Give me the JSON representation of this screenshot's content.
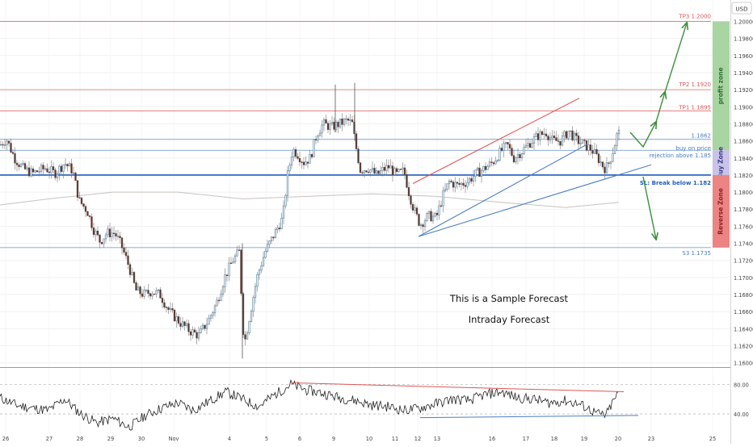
{
  "chart_data": {
    "type": "candlestick",
    "currency": "USD",
    "x_dates": [
      "26",
      "27",
      "28",
      "29",
      "30",
      "Nov",
      "4",
      "5",
      "6",
      "9",
      "10",
      "11",
      "12",
      "13",
      "16",
      "17",
      "18",
      "19",
      "20",
      "23",
      "25"
    ],
    "price_ticks": [
      "1.20000",
      "1.19800",
      "1.19600",
      "1.19400",
      "1.19200",
      "1.19000",
      "1.18800",
      "1.18600",
      "1.18400",
      "1.18200",
      "1.18000",
      "1.17800",
      "1.17600",
      "1.17400",
      "1.17200",
      "1.17000",
      "1.16800",
      "1.16600",
      "1.16400",
      "1.16200",
      "1.16000"
    ],
    "ylim": [
      1.1595,
      1.2025
    ],
    "levels": [
      {
        "label": "TP3 1.2000",
        "price": 1.2,
        "color": "#e05555"
      },
      {
        "label": "TP2 1.1920",
        "price": 1.192,
        "color": "#e05555"
      },
      {
        "label": "TP1 1.1895",
        "price": 1.1895,
        "color": "#e05555"
      },
      {
        "label": "1.1862",
        "price": 1.1862,
        "color": "#4a7fc1"
      },
      {
        "label": "buy on price",
        "price": 1.1849,
        "color": "#4a7fc1"
      },
      {
        "label": "rejection above 1.185",
        "price": 1.1849,
        "color": "#4a7fc1"
      },
      {
        "label": "SL: Break below 1.182",
        "price": 1.182,
        "color": "#1f5fbf"
      },
      {
        "label": "S3 1.1735",
        "price": 1.1735,
        "color": "#4a7fc1"
      }
    ],
    "zones": [
      {
        "label": "profit zone",
        "from": 1.1849,
        "to": 1.2,
        "color": "#a8d5a2"
      },
      {
        "label": "Buy Zone",
        "from": 1.182,
        "to": 1.1849,
        "color": "#c9c3e8"
      },
      {
        "label": "Reverse Zone",
        "from": 1.1735,
        "to": 1.182,
        "color": "#ec8484"
      }
    ],
    "close_anchors": [
      [
        0,
        1.1855
      ],
      [
        8,
        1.1862
      ],
      [
        18,
        1.184
      ],
      [
        28,
        1.1828
      ],
      [
        40,
        1.1822
      ],
      [
        56,
        1.1828
      ],
      [
        68,
        1.1822
      ],
      [
        80,
        1.1834
      ],
      [
        90,
        1.1825
      ],
      [
        98,
        1.179
      ],
      [
        108,
        1.1778
      ],
      [
        116,
        1.1756
      ],
      [
        124,
        1.1742
      ],
      [
        132,
        1.1752
      ],
      [
        142,
        1.1752
      ],
      [
        150,
        1.1738
      ],
      [
        160,
        1.1712
      ],
      [
        168,
        1.1685
      ],
      [
        178,
        1.168
      ],
      [
        188,
        1.1684
      ],
      [
        198,
        1.168
      ],
      [
        210,
        1.166
      ],
      [
        222,
        1.1648
      ],
      [
        234,
        1.1638
      ],
      [
        246,
        1.1632
      ],
      [
        258,
        1.165
      ],
      [
        268,
        1.167
      ],
      [
        278,
        1.17
      ],
      [
        288,
        1.172
      ],
      [
        296,
        1.173
      ],
      [
        302,
        1.162
      ],
      [
        310,
        1.166
      ],
      [
        318,
        1.17
      ],
      [
        328,
        1.173
      ],
      [
        338,
        1.1748
      ],
      [
        350,
        1.177
      ],
      [
        356,
        1.182
      ],
      [
        362,
        1.185
      ],
      [
        368,
        1.1845
      ],
      [
        376,
        1.1835
      ],
      [
        384,
        1.184
      ],
      [
        392,
        1.1868
      ],
      [
        400,
        1.188
      ],
      [
        410,
        1.1876
      ],
      [
        420,
        1.188
      ],
      [
        430,
        1.1884
      ],
      [
        436,
        1.188
      ],
      [
        440,
        1.1856
      ],
      [
        446,
        1.1826
      ],
      [
        456,
        1.1828
      ],
      [
        466,
        1.182
      ],
      [
        474,
        1.1826
      ],
      [
        482,
        1.183
      ],
      [
        490,
        1.182
      ],
      [
        500,
        1.1825
      ],
      [
        506,
        1.18
      ],
      [
        512,
        1.178
      ],
      [
        520,
        1.1762
      ],
      [
        530,
        1.1772
      ],
      [
        540,
        1.177
      ],
      [
        548,
        1.1795
      ],
      [
        556,
        1.1812
      ],
      [
        566,
        1.1808
      ],
      [
        578,
        1.1812
      ],
      [
        590,
        1.1822
      ],
      [
        600,
        1.1828
      ],
      [
        610,
        1.1835
      ],
      [
        620,
        1.1848
      ],
      [
        628,
        1.1855
      ],
      [
        636,
        1.184
      ],
      [
        646,
        1.1848
      ],
      [
        656,
        1.1858
      ],
      [
        666,
        1.1866
      ],
      [
        676,
        1.187
      ],
      [
        684,
        1.186
      ],
      [
        694,
        1.186
      ],
      [
        704,
        1.1872
      ],
      [
        712,
        1.1862
      ],
      [
        722,
        1.1856
      ],
      [
        732,
        1.185
      ],
      [
        740,
        1.184
      ],
      [
        748,
        1.1828
      ],
      [
        752,
        1.183
      ],
      [
        758,
        1.1846
      ],
      [
        764,
        1.1868
      ],
      [
        768,
        1.187
      ]
    ],
    "ma_line": [
      [
        0,
        1.1785
      ],
      [
        60,
        1.1792
      ],
      [
        140,
        1.18
      ],
      [
        220,
        1.18
      ],
      [
        300,
        1.1792
      ],
      [
        380,
        1.1795
      ],
      [
        460,
        1.1798
      ],
      [
        540,
        1.1795
      ],
      [
        620,
        1.1788
      ],
      [
        700,
        1.1782
      ],
      [
        766,
        1.1788
      ]
    ],
    "trendlines": [
      {
        "points": [
          [
            511,
            1.181
          ],
          [
            717,
            1.191
          ]
        ],
        "color": "#e05555"
      },
      {
        "points": [
          [
            518,
            1.1748
          ],
          [
            727,
            1.1856
          ]
        ],
        "color": "#4a7fc1"
      },
      {
        "points": [
          [
            518,
            1.1748
          ],
          [
            806,
            1.1832
          ]
        ],
        "color": "#4a7fc1"
      }
    ],
    "forecast_arrows": [
      {
        "points": [
          [
            780,
            1.187
          ],
          [
            796,
            1.1853
          ],
          [
            812,
            1.1882
          ]
        ],
        "color": "#3a8f3a"
      },
      {
        "points": [
          [
            812,
            1.1882
          ],
          [
            823,
            1.1917
          ]
        ],
        "color": "#3a8f3a"
      },
      {
        "points": [
          [
            823,
            1.1917
          ],
          [
            850,
            1.1998
          ]
        ],
        "color": "#3a8f3a"
      },
      {
        "points": [
          [
            796,
            1.1818
          ],
          [
            812,
            1.1745
          ]
        ],
        "color": "#3a8f3a"
      }
    ],
    "oscillator": {
      "ticks": [
        "80.00",
        "40.00"
      ],
      "ylim": [
        15,
        100
      ],
      "line_anchors": [
        [
          0,
          62
        ],
        [
          20,
          52
        ],
        [
          40,
          48
        ],
        [
          60,
          45
        ],
        [
          80,
          60
        ],
        [
          100,
          40
        ],
        [
          120,
          28
        ],
        [
          140,
          34
        ],
        [
          160,
          22
        ],
        [
          180,
          38
        ],
        [
          200,
          48
        ],
        [
          220,
          55
        ],
        [
          240,
          45
        ],
        [
          260,
          58
        ],
        [
          280,
          70
        ],
        [
          300,
          60
        ],
        [
          320,
          50
        ],
        [
          340,
          66
        ],
        [
          360,
          80
        ],
        [
          380,
          72
        ],
        [
          400,
          68
        ],
        [
          420,
          62
        ],
        [
          440,
          58
        ],
        [
          460,
          52
        ],
        [
          480,
          50
        ],
        [
          500,
          45
        ],
        [
          520,
          48
        ],
        [
          540,
          54
        ],
        [
          560,
          60
        ],
        [
          580,
          58
        ],
        [
          600,
          66
        ],
        [
          620,
          70
        ],
        [
          640,
          62
        ],
        [
          660,
          60
        ],
        [
          680,
          55
        ],
        [
          700,
          58
        ],
        [
          720,
          52
        ],
        [
          740,
          40
        ],
        [
          750,
          38
        ],
        [
          758,
          55
        ],
        [
          766,
          70
        ]
      ],
      "trendlines": [
        {
          "points": [
            [
              362,
              82
            ],
            [
              772,
              70
            ]
          ],
          "color": "#e05555"
        },
        {
          "points": [
            [
              520,
              35
            ],
            [
              790,
              38
            ]
          ],
          "color": "#4a7fc1"
        }
      ]
    },
    "annotations": [
      "This is a Sample Forecast",
      "Intraday Forecast"
    ]
  }
}
